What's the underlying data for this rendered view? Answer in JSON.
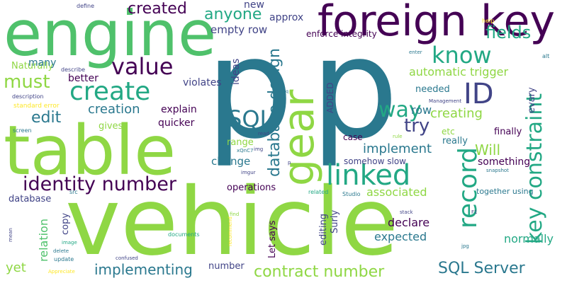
{
  "colors": {
    "lime": "#8fd744",
    "green": "#4fc16b",
    "teal": "#22a884",
    "blue": "#2a788e",
    "indigo": "#414487",
    "purple": "#440154",
    "yellow": "#fde725"
  },
  "words": [
    {
      "text": "vehicle",
      "color": "#8fd744"
    },
    {
      "text": "p",
      "color": "#2a788e"
    },
    {
      "text": "p",
      "color": "#2a788e"
    },
    {
      "text": "table",
      "color": "#8fd744"
    },
    {
      "text": "engine",
      "color": "#4fc16b"
    },
    {
      "text": "foreign key",
      "color": "#440154"
    },
    {
      "text": "gear",
      "color": "#8fd744"
    },
    {
      "text": "linked",
      "color": "#22a884"
    },
    {
      "text": "record",
      "color": "#22a884"
    },
    {
      "text": "create",
      "color": "#22a884"
    },
    {
      "text": "identity number",
      "color": "#440154"
    },
    {
      "text": "key constraint",
      "color": "#22a884"
    },
    {
      "text": "value",
      "color": "#440154"
    },
    {
      "text": "know",
      "color": "#22a884"
    },
    {
      "text": "ID",
      "color": "#414487"
    },
    {
      "text": "way",
      "color": "#22a884"
    },
    {
      "text": "SQL",
      "color": "#2a788e"
    },
    {
      "text": "SQL Server",
      "color": "#2a788e"
    },
    {
      "text": "contract number",
      "color": "#8fd744"
    },
    {
      "text": "database design",
      "color": "#2a788e"
    },
    {
      "text": "must",
      "color": "#8fd744"
    },
    {
      "text": "fields",
      "color": "#22a884"
    },
    {
      "text": "created",
      "color": "#440154"
    },
    {
      "text": "anyone",
      "color": "#22a884"
    },
    {
      "text": "implementing",
      "color": "#2a788e"
    },
    {
      "text": "Will",
      "color": "#8fd744"
    },
    {
      "text": "try",
      "color": "#414487"
    },
    {
      "text": "edit",
      "color": "#2a788e"
    },
    {
      "text": "creation",
      "color": "#2a788e"
    },
    {
      "text": "creating",
      "color": "#8fd744"
    },
    {
      "text": "implement",
      "color": "#2a788e"
    },
    {
      "text": "automatic trigger",
      "color": "#8fd744"
    },
    {
      "text": "relation",
      "color": "#4fc16b"
    },
    {
      "text": "yet",
      "color": "#8fd744"
    },
    {
      "text": "associated",
      "color": "#8fd744"
    },
    {
      "text": "expected",
      "color": "#2a788e"
    },
    {
      "text": "declare",
      "color": "#440154"
    },
    {
      "text": "normally",
      "color": "#22a884"
    },
    {
      "text": "row",
      "color": "#2a788e"
    },
    {
      "text": "Naturally",
      "color": "#8fd744"
    },
    {
      "text": "empty row",
      "color": "#414487"
    },
    {
      "text": "new",
      "color": "#414487"
    },
    {
      "text": "ideas",
      "color": "#414487"
    },
    {
      "text": "approx",
      "color": "#414487"
    },
    {
      "text": "enforce integrity",
      "color": "#440154"
    },
    {
      "text": "many",
      "color": "#2a788e"
    },
    {
      "text": "better",
      "color": "#440154"
    },
    {
      "text": "violates",
      "color": "#414487"
    },
    {
      "text": "explain",
      "color": "#440154"
    },
    {
      "text": "quicker",
      "color": "#440154"
    },
    {
      "text": "gives",
      "color": "#8fd744"
    },
    {
      "text": "range",
      "color": "#8fd744"
    },
    {
      "text": "change",
      "color": "#2a788e"
    },
    {
      "text": "operations",
      "color": "#440154"
    },
    {
      "text": "database",
      "color": "#414487"
    },
    {
      "text": "copy",
      "color": "#414487"
    },
    {
      "text": "Surly",
      "color": "#414487"
    },
    {
      "text": "editing",
      "color": "#414487"
    },
    {
      "text": "Let says",
      "color": "#440154"
    },
    {
      "text": "number",
      "color": "#414487"
    },
    {
      "text": "really",
      "color": "#2a788e"
    },
    {
      "text": "something",
      "color": "#440154"
    },
    {
      "text": "finally",
      "color": "#440154"
    },
    {
      "text": "needed",
      "color": "#2a788e"
    },
    {
      "text": "evary",
      "color": "#414487"
    },
    {
      "text": "etc",
      "color": "#8fd744"
    },
    {
      "text": "case",
      "color": "#440154"
    },
    {
      "text": "ADDED",
      "color": "#414487"
    },
    {
      "text": "somehow slow",
      "color": "#414487"
    },
    {
      "text": "together using",
      "color": "#2a788e"
    },
    {
      "text": "define",
      "color": "#414487"
    },
    {
      "text": "help",
      "color": "#fde725"
    },
    {
      "text": "enter",
      "color": "#2a788e"
    },
    {
      "text": "alt",
      "color": "#2a788e"
    },
    {
      "text": "describe",
      "color": "#414487"
    },
    {
      "text": "description",
      "color": "#414487"
    },
    {
      "text": "standard error",
      "color": "#fde725"
    },
    {
      "text": "screen",
      "color": "#2a788e"
    },
    {
      "text": "Management",
      "color": "#414487"
    },
    {
      "text": "sq",
      "color": "#2a788e"
    },
    {
      "text": "read",
      "color": "#414487"
    },
    {
      "text": "rule",
      "color": "#8fd744"
    },
    {
      "text": "img",
      "color": "#414487"
    },
    {
      "text": "xQnC7",
      "color": "#2a788e"
    },
    {
      "text": "imgur",
      "color": "#414487"
    },
    {
      "text": "snapshot",
      "color": "#2a788e"
    },
    {
      "text": "Studio",
      "color": "#2a788e"
    },
    {
      "text": "related",
      "color": "#22a884"
    },
    {
      "text": "src",
      "color": "#2a788e"
    },
    {
      "text": "find",
      "color": "#8fd744"
    },
    {
      "text": "stack",
      "color": "#414487"
    },
    {
      "text": "F1",
      "color": "#414487"
    },
    {
      "text": "mean",
      "color": "#414487"
    },
    {
      "text": "image",
      "color": "#22a884"
    },
    {
      "text": "documents",
      "color": "#22a884"
    },
    {
      "text": "recommend",
      "color": "#fde725"
    },
    {
      "text": "jpg",
      "color": "#2a788e"
    },
    {
      "text": "delete",
      "color": "#2a788e"
    },
    {
      "text": "update",
      "color": "#2a788e"
    },
    {
      "text": "confused",
      "color": "#414487"
    },
    {
      "text": "Appreciate",
      "color": "#fde725"
    },
    {
      "text": "p",
      "color": "#414487"
    }
  ]
}
